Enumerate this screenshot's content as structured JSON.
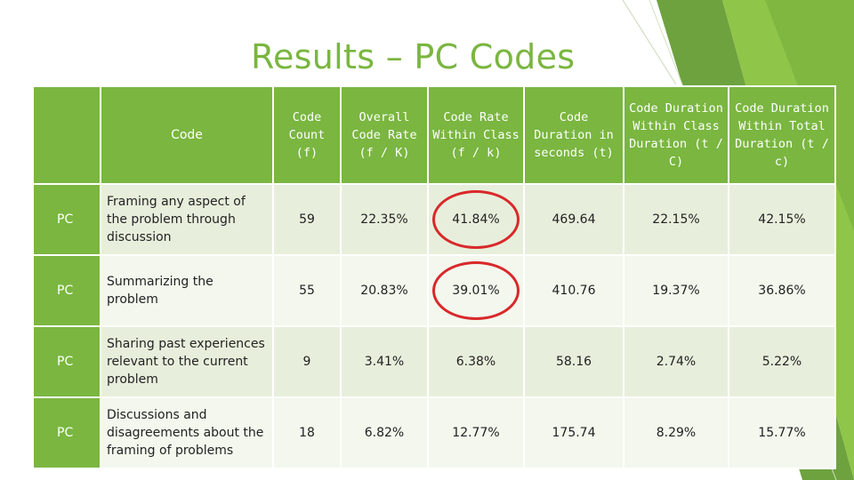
{
  "slide": {
    "title": "Results – PC Codes"
  },
  "table": {
    "headers": [
      "Code",
      "Code Count (f)",
      "Overall Code Rate (f / K)",
      "Code Rate Within Class (f / k)",
      "Code Duration in seconds (t)",
      "Code Duration Within Class Duration (t / C)",
      "Code Duration Within Total Duration (t / c)"
    ],
    "rows": [
      {
        "code": "PC",
        "description": "Framing any aspect of the problem through discussion",
        "count": "59",
        "overall_rate": "22.35%",
        "class_rate": "41.84%",
        "duration": "469.64",
        "class_duration_pct": "22.15%",
        "total_duration_pct": "42.15%",
        "highlighted": true
      },
      {
        "code": "PC",
        "description": "Summarizing the problem",
        "count": "55",
        "overall_rate": "20.83%",
        "class_rate": "39.01%",
        "duration": "410.76",
        "class_duration_pct": "19.37%",
        "total_duration_pct": "36.86%",
        "highlighted": true
      },
      {
        "code": "PC",
        "description": "Sharing past experiences relevant to the current problem",
        "count": "9",
        "overall_rate": "3.41%",
        "class_rate": "6.38%",
        "duration": "58.16",
        "class_duration_pct": "2.74%",
        "total_duration_pct": "5.22%",
        "highlighted": false
      },
      {
        "code": "PC",
        "description": "Discussions and disagreements about the framing of problems",
        "count": "18",
        "overall_rate": "6.82%",
        "class_rate": "12.77%",
        "duration": "175.74",
        "class_duration_pct": "8.29%",
        "total_duration_pct": "15.77%",
        "highlighted": false
      }
    ]
  },
  "colors": {
    "accent": "#7ab640",
    "row_odd": "#e7efdc",
    "row_even": "#f3f7ed",
    "highlight_circle": "#d9282b"
  }
}
